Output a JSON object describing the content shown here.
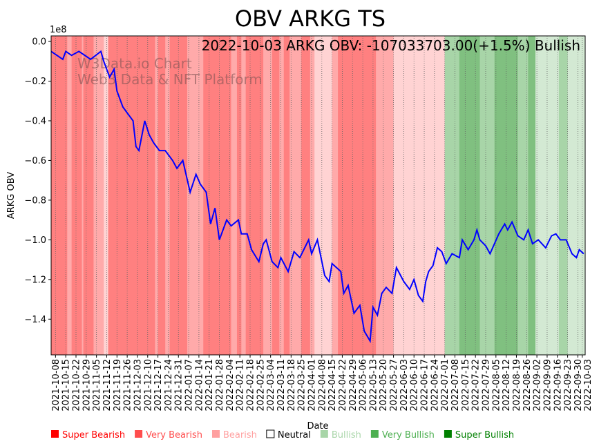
{
  "chart_data": {
    "type": "line",
    "title": "OBV ARKG TS",
    "xlabel": "Date",
    "ylabel": "ARKG OBV",
    "y_scale_label": "1e8",
    "ylim": [
      -1.58,
      0.028
    ],
    "yticks": [
      0.0,
      -0.2,
      -0.4,
      -0.6,
      -0.8,
      -1.0,
      -1.2,
      -1.4
    ],
    "ytick_labels": [
      "0.0",
      "−0.2",
      "−0.4",
      "−0.6",
      "−0.8",
      "−1.0",
      "−1.2",
      "−1.4"
    ],
    "x_start_date": "2021-10-08",
    "x_unit": "days since x_start_date",
    "xlim": [
      -3,
      362
    ],
    "xtick_labels": [
      "2021-10-08",
      "2021-10-15",
      "2021-10-22",
      "2021-10-29",
      "2021-11-05",
      "2021-11-12",
      "2021-11-19",
      "2021-11-26",
      "2021-12-03",
      "2021-12-10",
      "2021-12-17",
      "2021-12-24",
      "2021-12-31",
      "2022-01-07",
      "2022-01-14",
      "2022-01-21",
      "2022-01-28",
      "2022-02-04",
      "2022-02-11",
      "2022-02-18",
      "2022-02-25",
      "2022-03-04",
      "2022-03-11",
      "2022-03-18",
      "2022-03-25",
      "2022-04-01",
      "2022-04-08",
      "2022-04-15",
      "2022-04-22",
      "2022-04-29",
      "2022-05-06",
      "2022-05-13",
      "2022-05-20",
      "2022-05-27",
      "2022-06-03",
      "2022-06-10",
      "2022-06-17",
      "2022-06-24",
      "2022-07-01",
      "2022-07-08",
      "2022-07-15",
      "2022-07-22",
      "2022-07-29",
      "2022-08-05",
      "2022-08-12",
      "2022-08-19",
      "2022-08-26",
      "2022-09-02",
      "2022-09-09",
      "2022-09-16",
      "2022-09-23",
      "2022-09-30",
      "2022-10-03"
    ],
    "xtick_days": [
      0,
      7,
      14,
      21,
      28,
      35,
      42,
      49,
      56,
      63,
      70,
      77,
      84,
      91,
      98,
      105,
      112,
      119,
      126,
      133,
      140,
      147,
      154,
      161,
      168,
      175,
      182,
      189,
      196,
      203,
      210,
      217,
      224,
      231,
      238,
      245,
      252,
      259,
      266,
      273,
      280,
      287,
      294,
      301,
      308,
      315,
      322,
      329,
      336,
      343,
      350,
      357,
      360
    ],
    "grid": "x-dotted",
    "annotation": "2022-10-03 ARKG OBV: -107033703.00(+1.5%) Bullish",
    "watermark": [
      "W3Data.io Chart",
      "Web3 Data & NFT Platform"
    ],
    "series": [
      {
        "name": "OBV",
        "color": "#0000ff",
        "points": [
          [
            -3,
            -0.05
          ],
          [
            5,
            -0.09
          ],
          [
            7,
            -0.05
          ],
          [
            11,
            -0.07
          ],
          [
            16,
            -0.05
          ],
          [
            24,
            -0.09
          ],
          [
            31,
            -0.05
          ],
          [
            33,
            -0.1
          ],
          [
            37,
            -0.18
          ],
          [
            40,
            -0.14
          ],
          [
            42,
            -0.25
          ],
          [
            46,
            -0.33
          ],
          [
            50,
            -0.37
          ],
          [
            53,
            -0.4
          ],
          [
            55,
            -0.53
          ],
          [
            57,
            -0.55
          ],
          [
            61,
            -0.4
          ],
          [
            64,
            -0.47
          ],
          [
            67,
            -0.51
          ],
          [
            71,
            -0.55
          ],
          [
            75,
            -0.55
          ],
          [
            80,
            -0.6
          ],
          [
            83,
            -0.64
          ],
          [
            87,
            -0.6
          ],
          [
            92,
            -0.76
          ],
          [
            96,
            -0.67
          ],
          [
            99,
            -0.72
          ],
          [
            103,
            -0.76
          ],
          [
            106,
            -0.92
          ],
          [
            109,
            -0.84
          ],
          [
            112,
            -1.0
          ],
          [
            117,
            -0.9
          ],
          [
            120,
            -0.93
          ],
          [
            125,
            -0.9
          ],
          [
            127,
            -0.97
          ],
          [
            131,
            -0.97
          ],
          [
            134,
            -1.05
          ],
          [
            139,
            -1.11
          ],
          [
            142,
            -1.02
          ],
          [
            144,
            -1.0
          ],
          [
            148,
            -1.11
          ],
          [
            152,
            -1.14
          ],
          [
            154,
            -1.09
          ],
          [
            159,
            -1.16
          ],
          [
            163,
            -1.06
          ],
          [
            167,
            -1.09
          ],
          [
            173,
            -1.0
          ],
          [
            175,
            -1.07
          ],
          [
            179,
            -1.0
          ],
          [
            184,
            -1.18
          ],
          [
            187,
            -1.21
          ],
          [
            189,
            -1.12
          ],
          [
            195,
            -1.16
          ],
          [
            197,
            -1.27
          ],
          [
            200,
            -1.23
          ],
          [
            204,
            -1.37
          ],
          [
            208,
            -1.33
          ],
          [
            211,
            -1.46
          ],
          [
            215,
            -1.51
          ],
          [
            217,
            -1.34
          ],
          [
            220,
            -1.38
          ],
          [
            223,
            -1.27
          ],
          [
            226,
            -1.24
          ],
          [
            230,
            -1.27
          ],
          [
            233,
            -1.14
          ],
          [
            238,
            -1.21
          ],
          [
            242,
            -1.25
          ],
          [
            245,
            -1.2
          ],
          [
            248,
            -1.28
          ],
          [
            251,
            -1.31
          ],
          [
            253,
            -1.21
          ],
          [
            255,
            -1.16
          ],
          [
            258,
            -1.13
          ],
          [
            261,
            -1.04
          ],
          [
            264,
            -1.06
          ],
          [
            267,
            -1.12
          ],
          [
            271,
            -1.07
          ],
          [
            276,
            -1.09
          ],
          [
            278,
            -1.0
          ],
          [
            282,
            -1.05
          ],
          [
            286,
            -1.0
          ],
          [
            288,
            -0.95
          ],
          [
            290,
            -1.0
          ],
          [
            294,
            -1.03
          ],
          [
            297,
            -1.07
          ],
          [
            303,
            -0.97
          ],
          [
            307,
            -0.92
          ],
          [
            309,
            -0.95
          ],
          [
            312,
            -0.91
          ],
          [
            316,
            -0.98
          ],
          [
            320,
            -1.0
          ],
          [
            323,
            -0.95
          ],
          [
            326,
            -1.02
          ],
          [
            330,
            -1.0
          ],
          [
            335,
            -1.04
          ],
          [
            339,
            -0.98
          ],
          [
            342,
            -0.97
          ],
          [
            345,
            -1.0
          ],
          [
            349,
            -1.0
          ],
          [
            353,
            -1.07
          ],
          [
            356,
            -1.09
          ],
          [
            358,
            -1.05
          ],
          [
            361,
            -1.07
          ]
        ]
      }
    ],
    "sentiment_bands": [
      [
        -3,
        8,
        "super_bearish"
      ],
      [
        8,
        11,
        "very_bearish"
      ],
      [
        11,
        18,
        "super_bearish"
      ],
      [
        18,
        19,
        "very_bearish"
      ],
      [
        19,
        26,
        "super_bearish"
      ],
      [
        26,
        33,
        "very_bearish"
      ],
      [
        33,
        36,
        "bearish"
      ],
      [
        36,
        68,
        "super_bearish"
      ],
      [
        68,
        70,
        "very_bearish"
      ],
      [
        70,
        75,
        "super_bearish"
      ],
      [
        75,
        78,
        "very_bearish"
      ],
      [
        78,
        90,
        "super_bearish"
      ],
      [
        90,
        101,
        "very_bearish"
      ],
      [
        101,
        120,
        "super_bearish"
      ],
      [
        120,
        124,
        "very_bearish"
      ],
      [
        124,
        127,
        "super_bearish"
      ],
      [
        127,
        130,
        "very_bearish"
      ],
      [
        130,
        142,
        "super_bearish"
      ],
      [
        142,
        148,
        "very_bearish"
      ],
      [
        148,
        153,
        "super_bearish"
      ],
      [
        153,
        156,
        "very_bearish"
      ],
      [
        156,
        160,
        "super_bearish"
      ],
      [
        160,
        168,
        "very_bearish"
      ],
      [
        168,
        174,
        "super_bearish"
      ],
      [
        174,
        177,
        "very_bearish"
      ],
      [
        177,
        189,
        "bearish"
      ],
      [
        189,
        193,
        "very_bearish"
      ],
      [
        193,
        219,
        "super_bearish"
      ],
      [
        219,
        231,
        "very_bearish"
      ],
      [
        231,
        266,
        "bearish"
      ],
      [
        266,
        276,
        "very_bullish"
      ],
      [
        276,
        290,
        "super_bullish"
      ],
      [
        290,
        300,
        "very_bullish"
      ],
      [
        300,
        316,
        "super_bullish"
      ],
      [
        316,
        323,
        "very_bullish"
      ],
      [
        323,
        328,
        "super_bullish"
      ],
      [
        328,
        344,
        "bullish"
      ],
      [
        344,
        350,
        "very_bullish"
      ],
      [
        350,
        362,
        "bullish"
      ]
    ],
    "band_colors": {
      "super_bearish": "#ff8080",
      "very_bearish": "#ffaaaa",
      "bearish": "#ffd3d3",
      "bullish": "#d3e9d3",
      "very_bullish": "#a8d5a8",
      "super_bullish": "#80c080"
    },
    "legend": [
      {
        "label": "Super Bearish",
        "color": "#ff0000",
        "text_color": "#ff0000"
      },
      {
        "label": "Very Bearish",
        "color": "#ff4d4d",
        "text_color": "#ff4d4d"
      },
      {
        "label": "Bearish",
        "color": "#ffa0a0",
        "text_color": "#ffa0a0"
      },
      {
        "label": "Neutral",
        "color": "#ffffff",
        "text_color": "#000000"
      },
      {
        "label": "Bullish",
        "color": "#a8d5a8",
        "text_color": "#a8d5a8"
      },
      {
        "label": "Very Bullish",
        "color": "#4caf50",
        "text_color": "#4caf50"
      },
      {
        "label": "Super Bullish",
        "color": "#008000",
        "text_color": "#008000"
      }
    ]
  }
}
